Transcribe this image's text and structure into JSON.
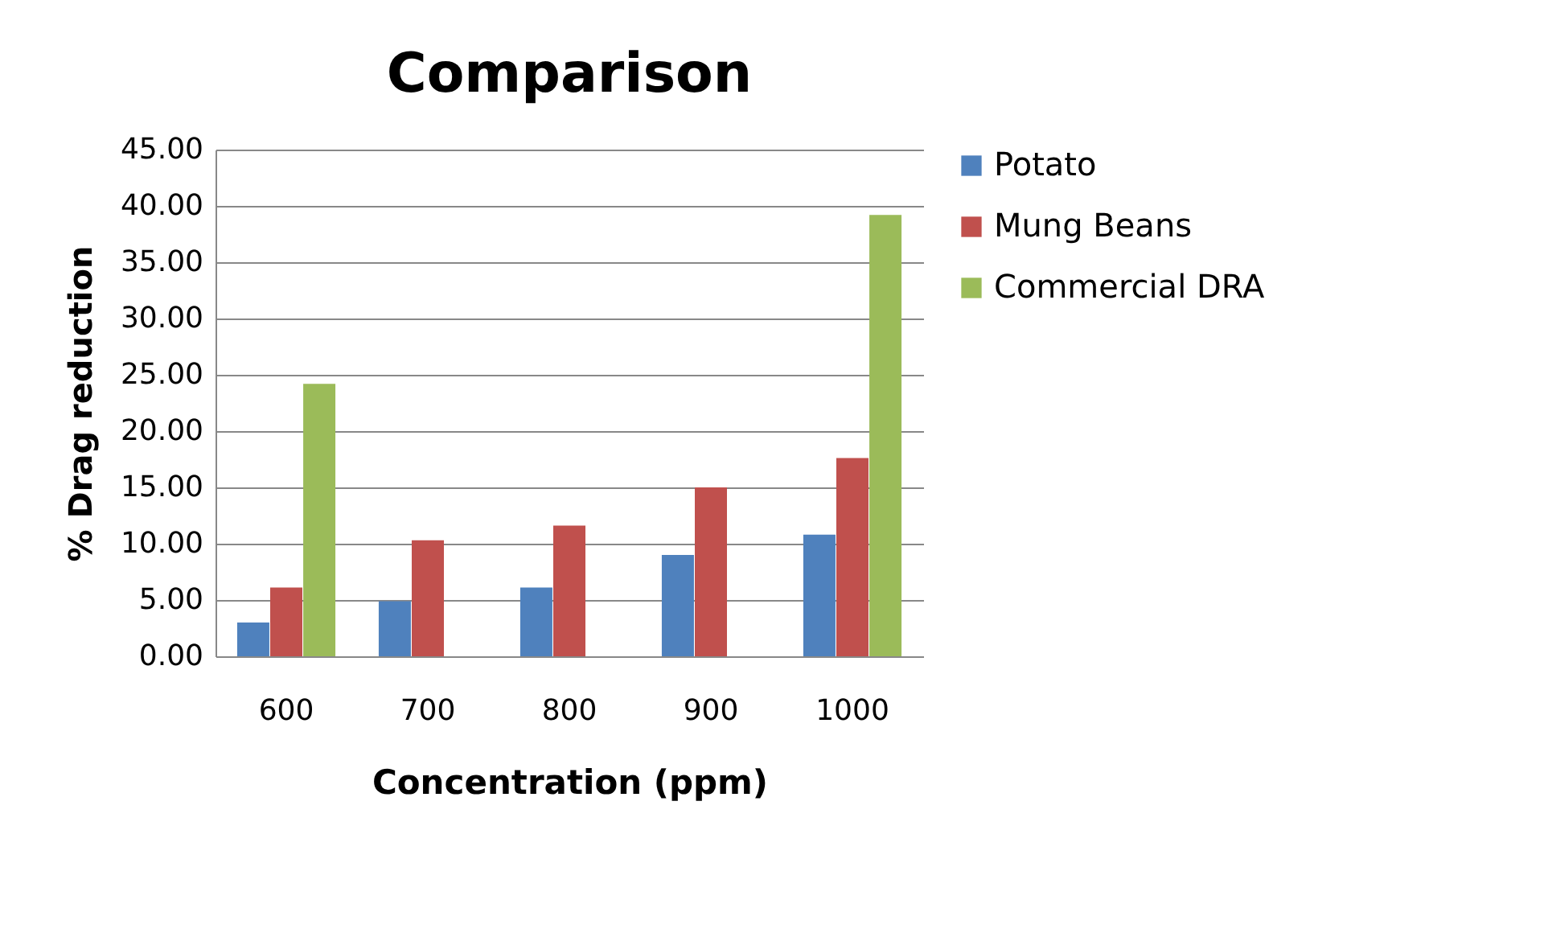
{
  "chart_data": {
    "type": "bar",
    "title": "Comparison",
    "xlabel": "Concentration (ppm)",
    "ylabel": "% Drag reduction",
    "categories": [
      "600",
      "700",
      "800",
      "900",
      "1000"
    ],
    "series": [
      {
        "name": "Potato",
        "color": "#4f81bd",
        "values": [
          3.0,
          4.9,
          6.1,
          9.0,
          10.8
        ]
      },
      {
        "name": "Mung Beans",
        "color": "#c0504d",
        "values": [
          6.1,
          10.3,
          11.6,
          15.0,
          17.6
        ]
      },
      {
        "name": "Commercial DRA",
        "color": "#9bbb59",
        "values": [
          24.2,
          null,
          null,
          null,
          39.2
        ]
      }
    ],
    "ylim": [
      0,
      45
    ],
    "yticks": [
      {
        "value": 0,
        "label": "0.00"
      },
      {
        "value": 5,
        "label": "5.00"
      },
      {
        "value": 10,
        "label": "10.00"
      },
      {
        "value": 15,
        "label": "15.00"
      },
      {
        "value": 20,
        "label": "20.00"
      },
      {
        "value": 25,
        "label": "25.00"
      },
      {
        "value": 30,
        "label": "30.00"
      },
      {
        "value": 35,
        "label": "35.00"
      },
      {
        "value": 40,
        "label": "40.00"
      },
      {
        "value": 45,
        "label": "45.00"
      }
    ],
    "grid": "y",
    "legend": "right"
  }
}
